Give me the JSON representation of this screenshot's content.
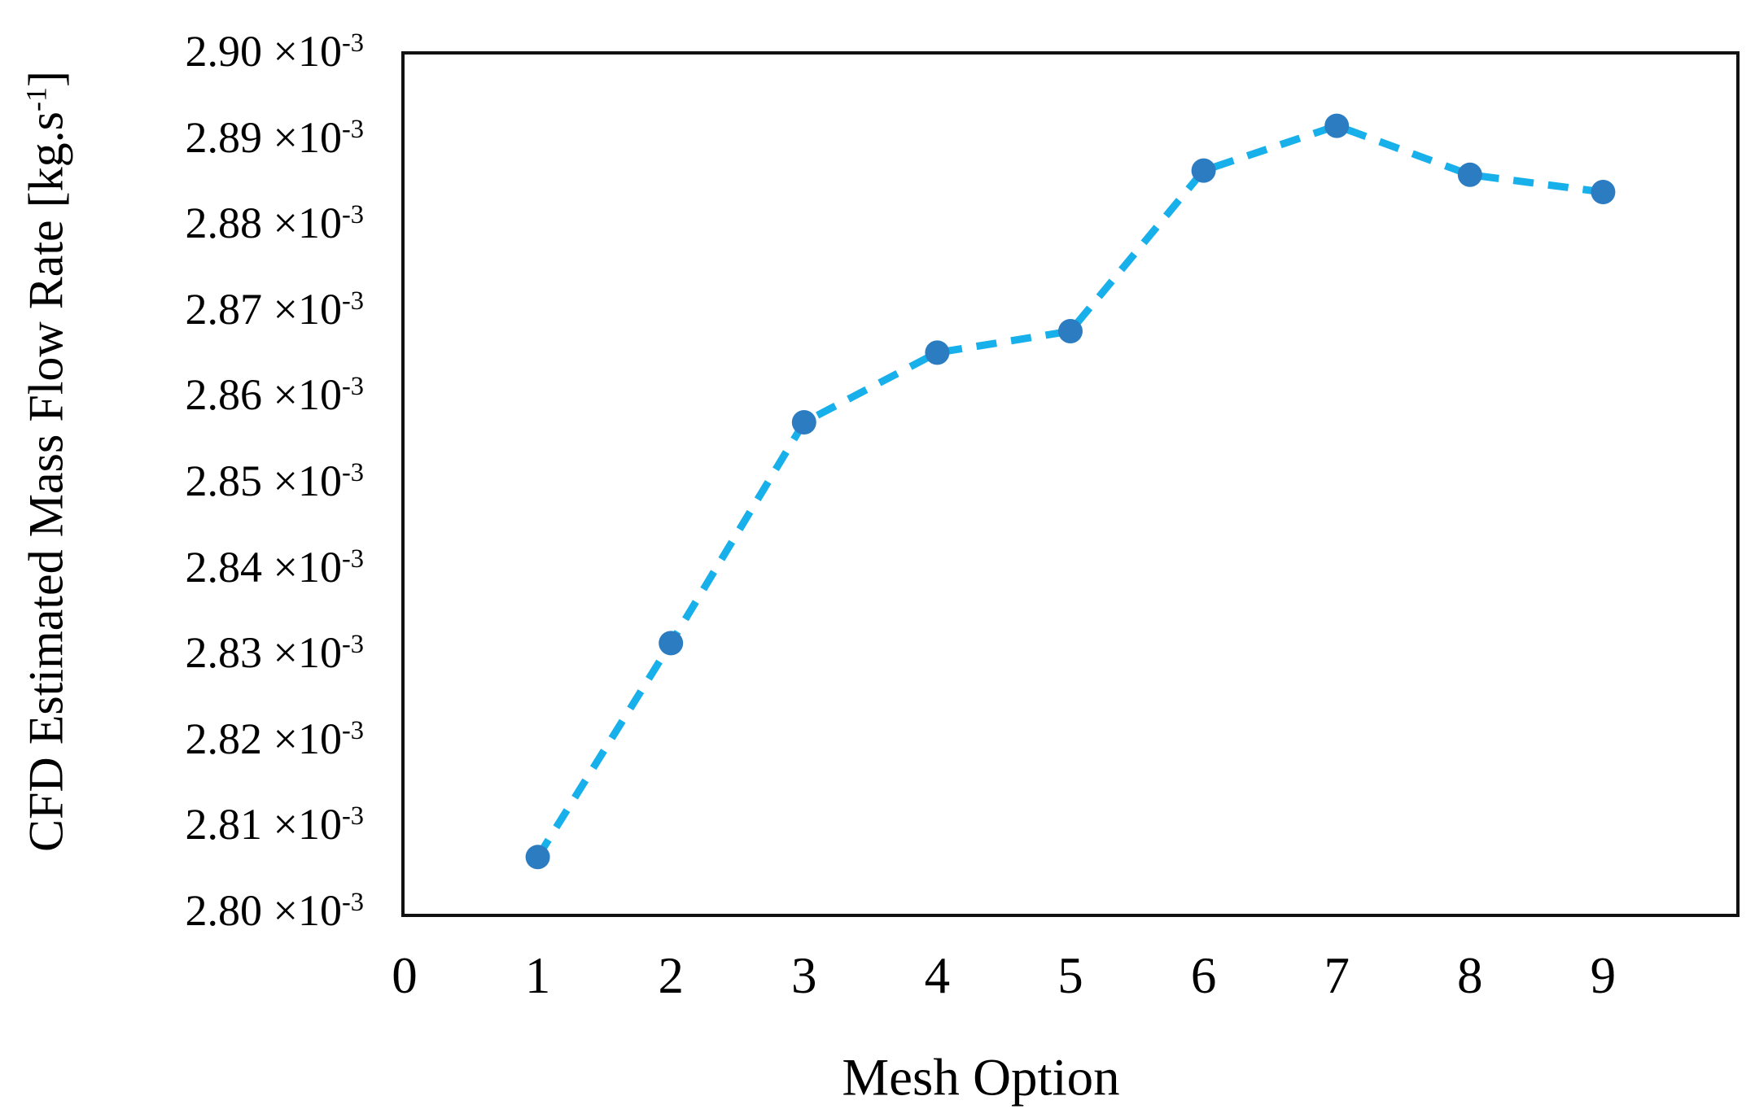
{
  "chart_data": {
    "type": "line",
    "title": "",
    "xlabel": "Mesh Option",
    "ylabel_main": "CFD Estimated Mass Flow Rate [kg.s",
    "ylabel_superscript": "-1",
    "ylabel_close": "]",
    "x": [
      1,
      2,
      3,
      4,
      5,
      6,
      7,
      8,
      9
    ],
    "y_times_1e3": [
      2.8066,
      2.8315,
      2.8572,
      2.8653,
      2.8678,
      2.8865,
      2.8917,
      2.886,
      2.884
    ],
    "y_unit": "kg.s-1",
    "xlim": [
      0,
      10
    ],
    "ylim_times_1e3": [
      2.8,
      2.9
    ],
    "x_tick_labels": [
      "0",
      "1",
      "2",
      "3",
      "4",
      "5",
      "6",
      "7",
      "8",
      "9"
    ],
    "y_tick_labels": [
      "2.80",
      "2.81",
      "2.82",
      "2.83",
      "2.84",
      "2.85",
      "2.86",
      "2.87",
      "2.88",
      "2.89",
      "2.90"
    ],
    "y_tick_multiplier": "×10",
    "y_tick_exponent": "-3",
    "grid": false,
    "legend_position": "none",
    "line_style": "dashed",
    "line_color": "#17B0EA",
    "marker_color": "#2C7CC2",
    "marker_shape": "circle",
    "axis_color": "#111111"
  }
}
